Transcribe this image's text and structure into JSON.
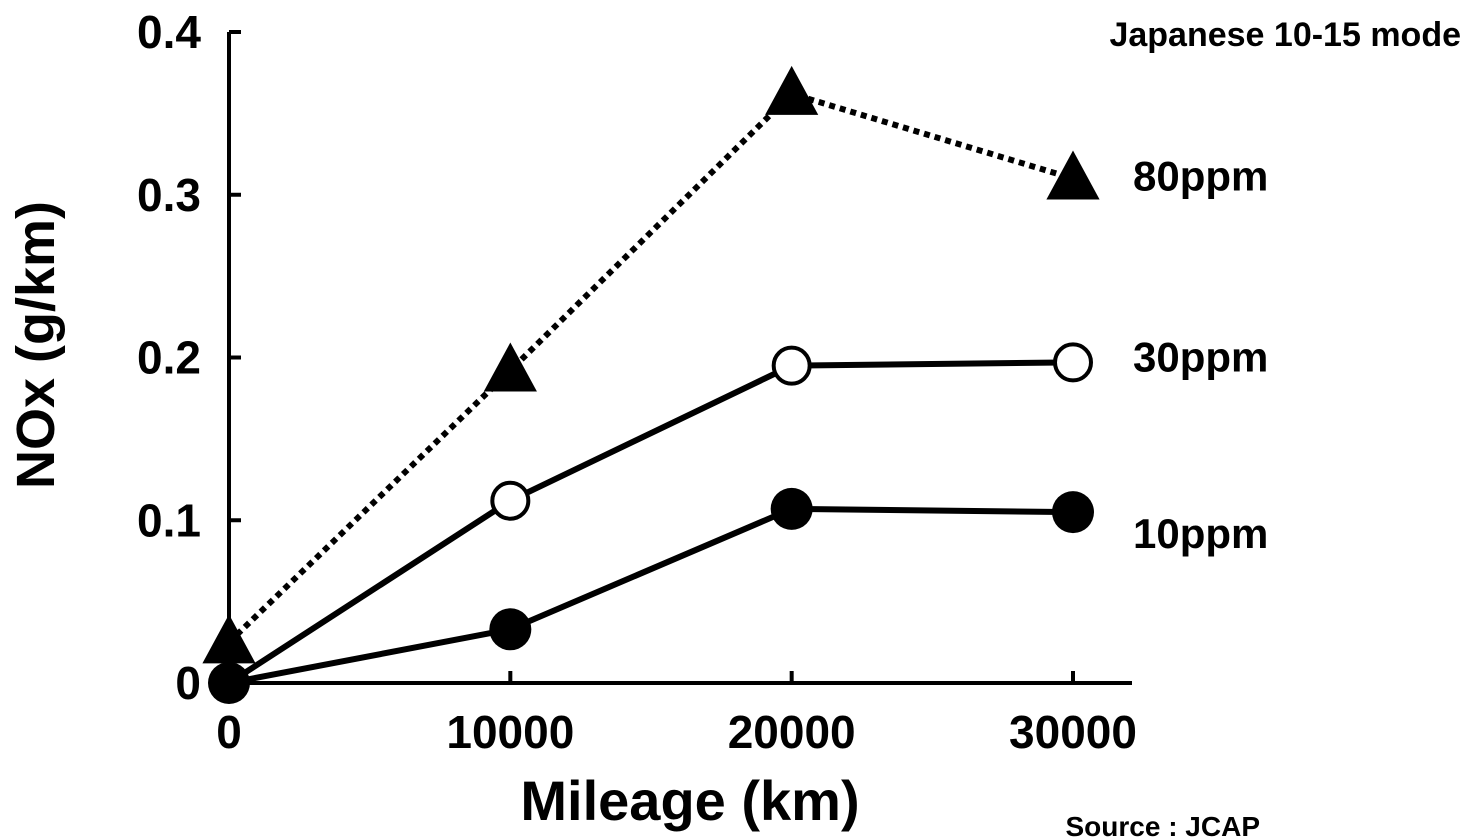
{
  "chart_data": {
    "type": "line",
    "title": "",
    "annotation": "Japanese 10-15 mode",
    "source": "Source : JCAP",
    "xlabel": "Mileage (km)",
    "ylabel": "NOx (g/km)",
    "x": [
      0,
      10000,
      20000,
      30000
    ],
    "x_ticks": [
      0,
      10000,
      20000,
      30000
    ],
    "x_tick_labels": [
      "0",
      "10000",
      "20000",
      "30000"
    ],
    "y_ticks": [
      0,
      0.1,
      0.2,
      0.3,
      0.4
    ],
    "y_tick_labels": [
      "0",
      "0.1",
      "0.2",
      "0.3",
      "0.4"
    ],
    "xlim": [
      0,
      32000
    ],
    "ylim": [
      0,
      0.4
    ],
    "grid": false,
    "legend": "inline-right",
    "series": [
      {
        "name": "80ppm",
        "values": [
          0.025,
          0.192,
          0.362,
          0.31
        ],
        "marker": "triangle",
        "line": "dotted",
        "color": "#000000"
      },
      {
        "name": "30ppm",
        "values": [
          0.0,
          0.112,
          0.195,
          0.197
        ],
        "marker": "open-circle",
        "line": "solid",
        "color": "#000000"
      },
      {
        "name": "10ppm",
        "values": [
          0.0,
          0.033,
          0.107,
          0.105
        ],
        "marker": "filled-circle",
        "line": "solid",
        "color": "#000000"
      }
    ]
  }
}
